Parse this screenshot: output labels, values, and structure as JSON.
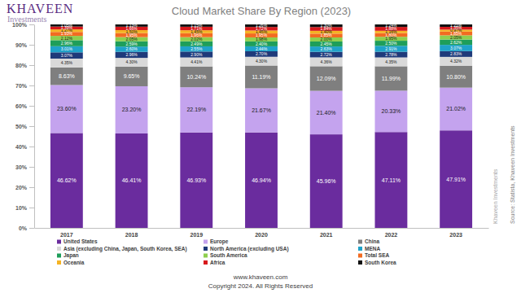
{
  "chart_data": {
    "type": "bar",
    "stacked": true,
    "data_labels": true,
    "grid": false,
    "legend": "bottom",
    "title": "Cloud Market Share By Region (2023)",
    "categories": [
      "2017",
      "2018",
      "2019",
      "2020",
      "2021",
      "2022",
      "2023"
    ],
    "ylim": [
      0,
      100
    ],
    "yticks": [
      {
        "value": 0,
        "label": "0%"
      },
      {
        "value": 10,
        "label": "10%"
      },
      {
        "value": 20,
        "label": "20%"
      },
      {
        "value": 30,
        "label": "30%"
      },
      {
        "value": 40,
        "label": "40%"
      },
      {
        "value": 50,
        "label": "50%"
      },
      {
        "value": 60,
        "label": "60%"
      },
      {
        "value": 70,
        "label": "70%"
      },
      {
        "value": 80,
        "label": "80%"
      },
      {
        "value": 90,
        "label": "90%"
      },
      {
        "value": 100,
        "label": "100%"
      }
    ],
    "series": [
      {
        "name": "United States",
        "color": "#6a2c9e",
        "values": [
          46.62,
          46.41,
          46.93,
          46.94,
          45.96,
          47.11,
          47.91
        ],
        "value_labels": [
          "46.62%",
          "46.41%",
          "46.93%",
          "46.94%",
          "45.96%",
          "47.11%",
          "47.91%"
        ]
      },
      {
        "name": "Europe",
        "color": "#c4a3ee",
        "values": [
          23.6,
          23.2,
          22.19,
          21.67,
          21.4,
          20.33,
          21.02
        ],
        "value_labels": [
          "23.60%",
          "23.20%",
          "22.19%",
          "21.67%",
          "21.40%",
          "20.33%",
          "21.02%"
        ]
      },
      {
        "name": "China",
        "color": "#7f7f7f",
        "values": [
          8.63,
          9.65,
          10.24,
          11.19,
          12.09,
          11.99,
          10.8
        ],
        "value_labels": [
          "8.63%",
          "9.65%",
          "10.24%",
          "11.19%",
          "12.09%",
          "11.99%",
          "10.80%"
        ]
      },
      {
        "name": "Asia (excluding China, Japan, South Korea, SEA)",
        "color": "#d9d9d9",
        "values": [
          4.35,
          4.3,
          4.41,
          4.3,
          4.36,
          4.35,
          4.32
        ],
        "value_labels": [
          "4.35%",
          "4.30%",
          "4.41%",
          "4.30%",
          "4.36%",
          "4.35%",
          "4.32%"
        ]
      },
      {
        "name": "North America (excluding USA)",
        "color": "#1f3a7a",
        "values": [
          3.07,
          2.96,
          2.9,
          2.7,
          2.72,
          2.78,
          2.83
        ],
        "value_labels": [
          "3.07%",
          "2.96%",
          "2.90%",
          "2.70%",
          "2.72%",
          "2.78%",
          "2.83%"
        ]
      },
      {
        "name": "MENA",
        "color": "#1fa3c9",
        "values": [
          3.01,
          2.6,
          2.55,
          2.44,
          2.63,
          2.91,
          3.07
        ],
        "value_labels": [
          "3.01%",
          "2.60%",
          "2.55%",
          "2.44%",
          "2.63%",
          "2.91%",
          "3.07%"
        ]
      },
      {
        "name": "Japan",
        "color": "#1e9e5a",
        "values": [
          2.96,
          2.59,
          2.49,
          2.4,
          2.45,
          2.5,
          2.62
        ],
        "value_labels": [
          "2.96%",
          "2.59%",
          "2.49%",
          "2.40%",
          "2.45%",
          "2.50%",
          "2.62%"
        ]
      },
      {
        "name": "South America",
        "color": "#8fcf4f",
        "values": [
          2.12,
          2.05,
          2.02,
          1.98,
          2.0,
          1.95,
          2.05
        ],
        "value_labels": [
          "2.12%",
          "2.05%",
          "2.02%",
          "1.98%",
          "2.00%",
          "1.95%",
          "2.05%"
        ]
      },
      {
        "name": "Total SEA",
        "color": "#f26b21",
        "values": [
          1.93,
          1.95,
          1.96,
          1.95,
          1.85,
          1.8,
          1.85
        ],
        "value_labels": [
          "1.93%",
          "1.95%",
          "1.96%",
          "1.95%",
          "1.85%",
          "1.80%",
          "1.85%"
        ]
      },
      {
        "name": "Oceania",
        "color": "#f5b324",
        "values": [
          1.27,
          1.5,
          1.45,
          1.45,
          1.4,
          1.16,
          0.97
        ],
        "value_labels": [
          "1.27%",
          "1.50%",
          "1.45%",
          "1.45%",
          "1.40%",
          "1.16%",
          "0.97%"
        ]
      },
      {
        "name": "Africa",
        "color": "#d7191c",
        "values": [
          1.39,
          1.66,
          1.71,
          1.72,
          1.84,
          1.88,
          1.35
        ],
        "value_labels": [
          "1.39%",
          "1.66%",
          "1.71%",
          "1.72%",
          "1.84%",
          "1.88%",
          "1.35%"
        ]
      },
      {
        "name": "South Korea",
        "color": "#111111",
        "values": [
          1.05,
          1.13,
          1.15,
          1.26,
          1.3,
          1.24,
          1.21
        ],
        "value_labels": [
          "1.05%",
          "1.13%",
          "1.15%",
          "1.26%",
          "1.30%",
          "1.24%",
          "1.21%"
        ]
      }
    ]
  },
  "header": {
    "logo": "KHAVEEN",
    "logo_subtitle": "Investments"
  },
  "source": "Source: Statista, Khaveen Investments",
  "watermark": "Khaveen Investments",
  "footer": {
    "website": "www.khaveen.com",
    "copyright": "Copyright 2024. All Rights Reserved"
  }
}
